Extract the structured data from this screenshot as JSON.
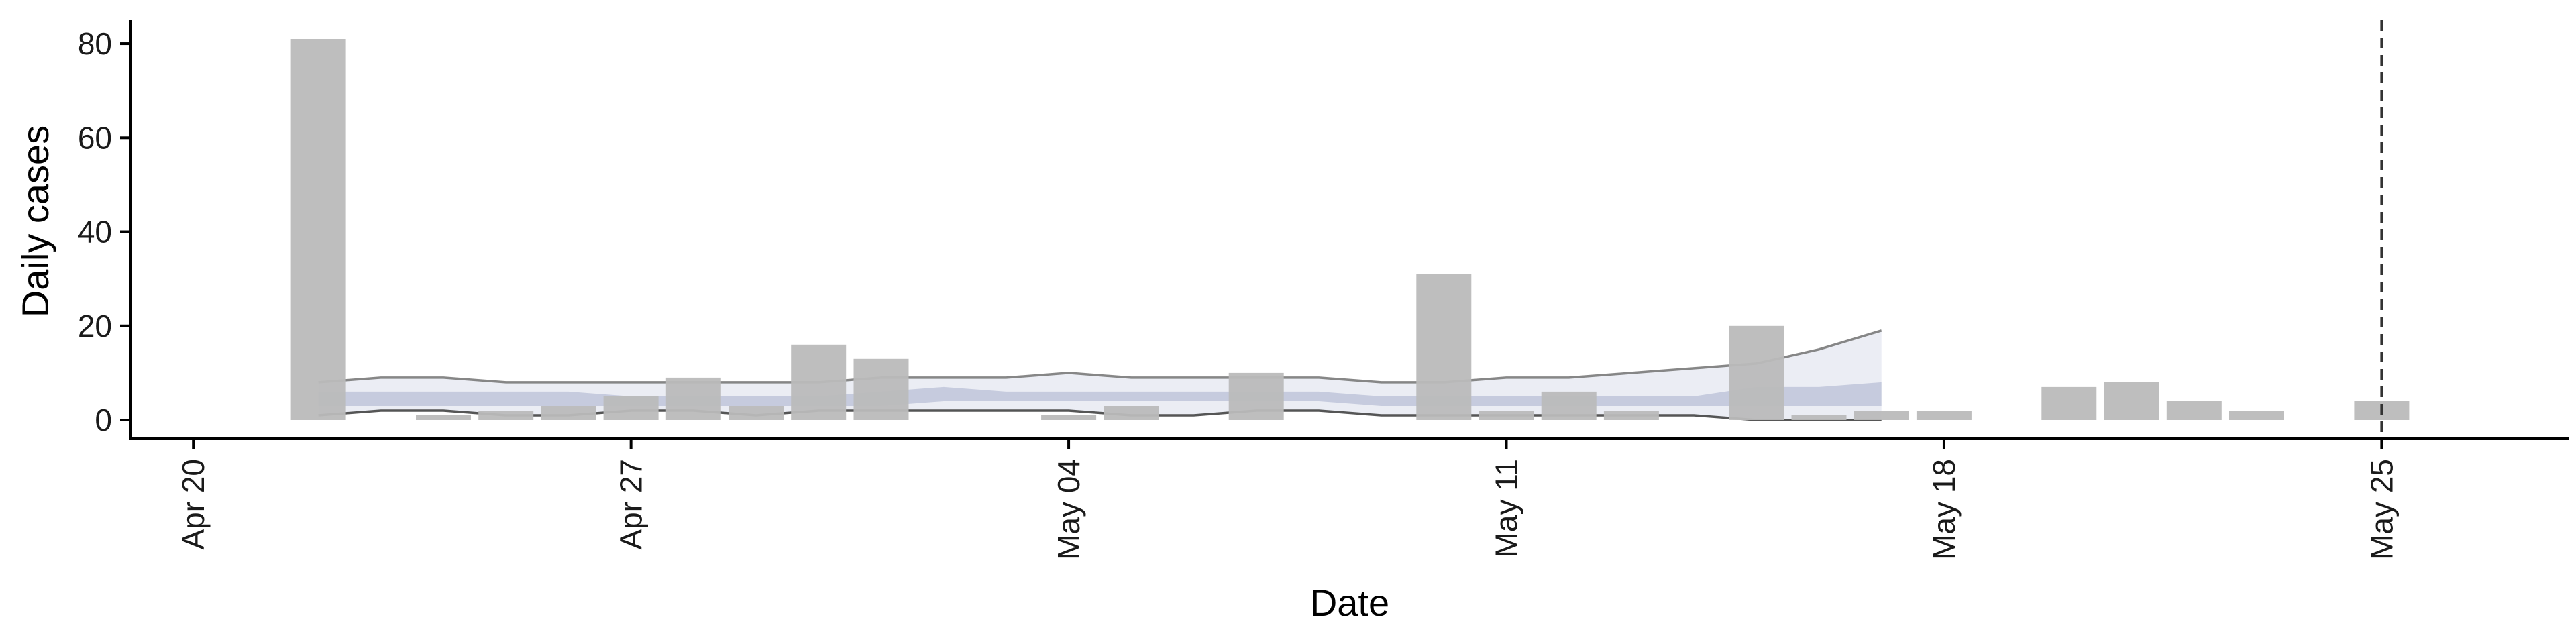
{
  "chart_data": {
    "type": "bar",
    "xlabel": "Date",
    "ylabel": "Daily cases",
    "ylim": [
      0,
      85
    ],
    "yticks": [
      0,
      20,
      40,
      60,
      80
    ],
    "xlim": [
      "2020-04-19",
      "2020-05-28"
    ],
    "xticks": [
      {
        "date": "2020-04-20",
        "label": "Apr 20"
      },
      {
        "date": "2020-04-27",
        "label": "Apr 27"
      },
      {
        "date": "2020-05-04",
        "label": "May 04"
      },
      {
        "date": "2020-05-11",
        "label": "May 11"
      },
      {
        "date": "2020-05-18",
        "label": "May 18"
      },
      {
        "date": "2020-05-25",
        "label": "May 25"
      }
    ],
    "reference_line": {
      "date": "2020-05-25",
      "style": "dashed"
    },
    "grid": false,
    "colors": {
      "bars": "#bbbbbb",
      "band_outer": "#c7cbe0",
      "band_inner": "#9aa2c4",
      "band_line": "#7a7a7a",
      "axis": "#000000",
      "reference_line": "#333333"
    },
    "bars": [
      {
        "date": "2020-04-22",
        "value": 81
      },
      {
        "date": "2020-04-24",
        "value": 1
      },
      {
        "date": "2020-04-25",
        "value": 2
      },
      {
        "date": "2020-04-26",
        "value": 3
      },
      {
        "date": "2020-04-27",
        "value": 5
      },
      {
        "date": "2020-04-28",
        "value": 9
      },
      {
        "date": "2020-04-29",
        "value": 3
      },
      {
        "date": "2020-04-30",
        "value": 16
      },
      {
        "date": "2020-05-01",
        "value": 13
      },
      {
        "date": "2020-05-04",
        "value": 1
      },
      {
        "date": "2020-05-05",
        "value": 3
      },
      {
        "date": "2020-05-07",
        "value": 10
      },
      {
        "date": "2020-05-10",
        "value": 31
      },
      {
        "date": "2020-05-11",
        "value": 2
      },
      {
        "date": "2020-05-12",
        "value": 6
      },
      {
        "date": "2020-05-13",
        "value": 2
      },
      {
        "date": "2020-05-15",
        "value": 20
      },
      {
        "date": "2020-05-16",
        "value": 1
      },
      {
        "date": "2020-05-17",
        "value": 2
      },
      {
        "date": "2020-05-18",
        "value": 2
      },
      {
        "date": "2020-05-20",
        "value": 7
      },
      {
        "date": "2020-05-21",
        "value": 8
      },
      {
        "date": "2020-05-22",
        "value": 4
      },
      {
        "date": "2020-05-23",
        "value": 2
      },
      {
        "date": "2020-05-25",
        "value": 4
      }
    ],
    "estimate_band": {
      "dates": [
        "2020-04-22",
        "2020-04-23",
        "2020-04-24",
        "2020-04-25",
        "2020-04-26",
        "2020-04-27",
        "2020-04-28",
        "2020-04-29",
        "2020-04-30",
        "2020-05-01",
        "2020-05-02",
        "2020-05-03",
        "2020-05-04",
        "2020-05-05",
        "2020-05-06",
        "2020-05-07",
        "2020-05-08",
        "2020-05-09",
        "2020-05-10",
        "2020-05-11",
        "2020-05-12",
        "2020-05-13",
        "2020-05-14",
        "2020-05-15",
        "2020-05-16",
        "2020-05-17"
      ],
      "outer_upper": [
        8,
        9,
        9,
        8,
        8,
        8,
        8,
        8,
        8,
        9,
        9,
        9,
        10,
        9,
        9,
        9,
        9,
        8,
        8,
        9,
        9,
        10,
        11,
        12,
        15,
        19
      ],
      "outer_lower": [
        1,
        2,
        2,
        1,
        1,
        2,
        2,
        1,
        2,
        2,
        2,
        2,
        2,
        1,
        1,
        2,
        2,
        1,
        1,
        1,
        1,
        1,
        1,
        0,
        0,
        0
      ],
      "inner_upper": [
        6,
        6,
        6,
        6,
        6,
        5,
        5,
        5,
        5,
        6,
        7,
        6,
        6,
        6,
        6,
        6,
        6,
        5,
        5,
        5,
        5,
        5,
        5,
        7,
        7,
        8
      ],
      "inner_lower": [
        3,
        3,
        3,
        3,
        3,
        3,
        3,
        3,
        3,
        3,
        4,
        4,
        4,
        4,
        4,
        4,
        4,
        3,
        3,
        3,
        3,
        3,
        3,
        3,
        3,
        3
      ]
    }
  }
}
